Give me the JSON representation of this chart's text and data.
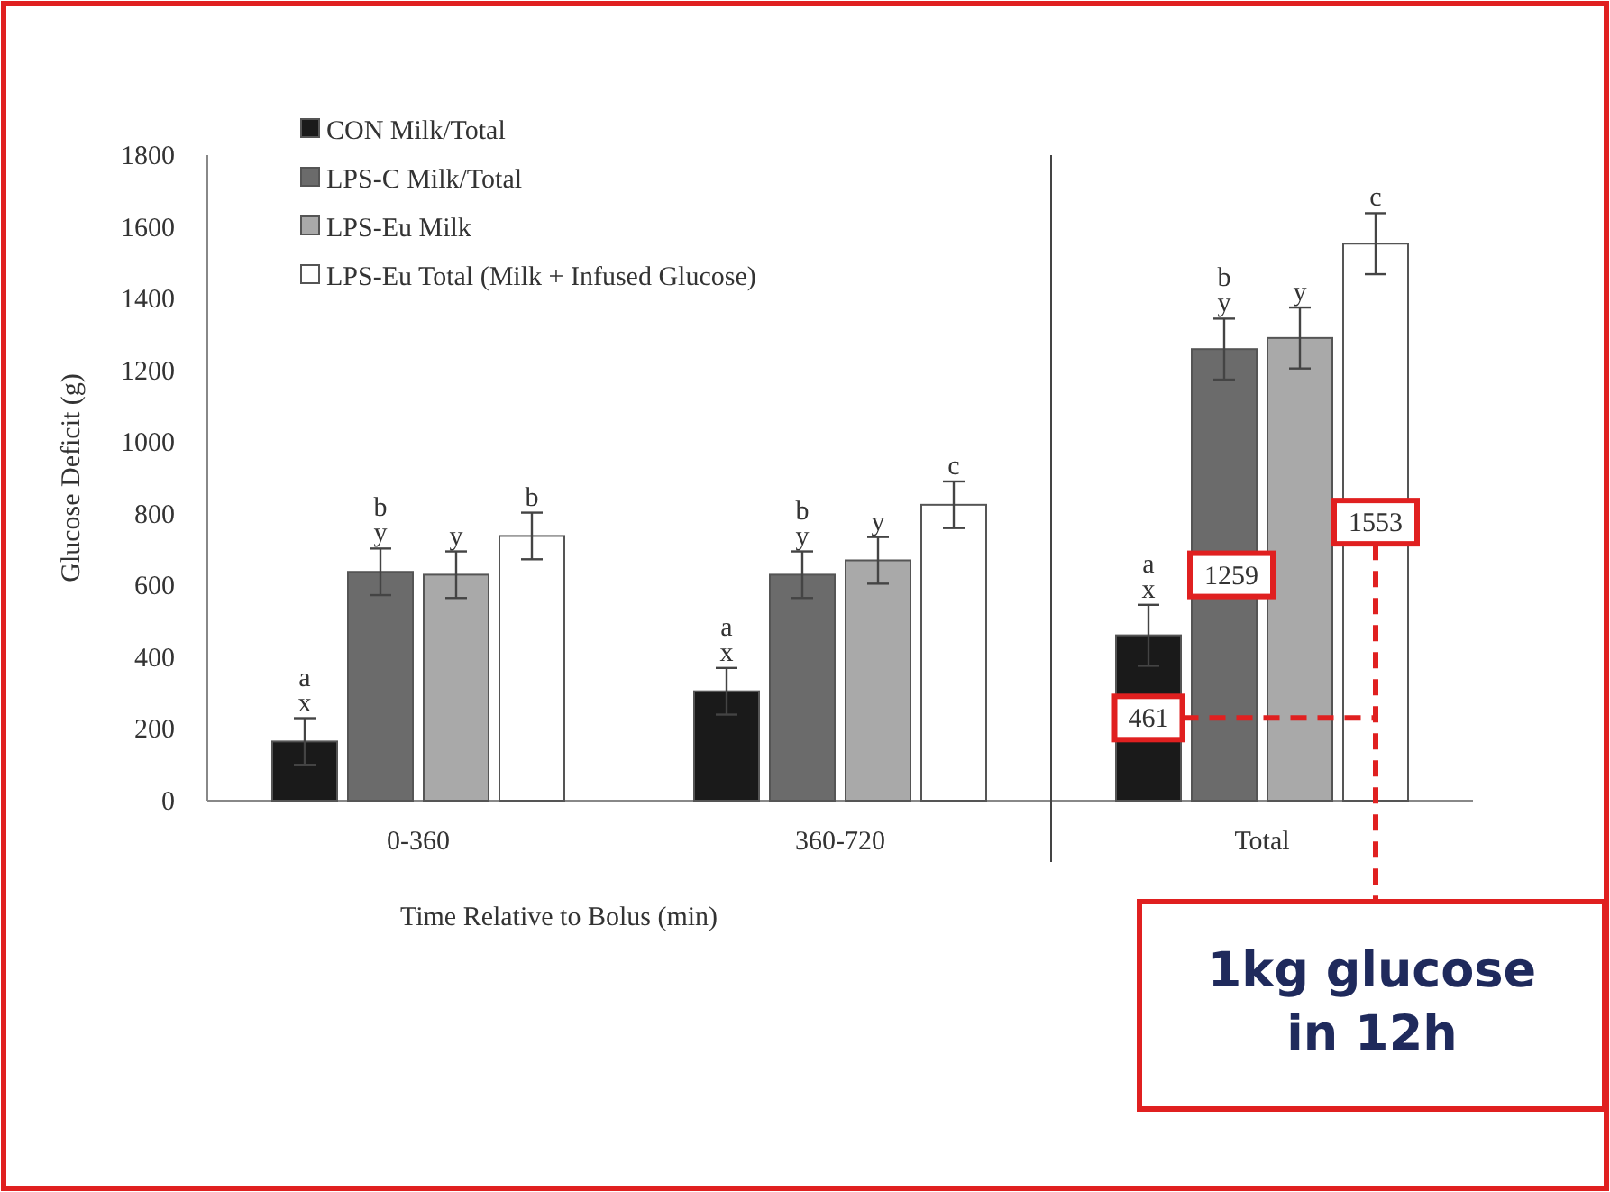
{
  "chart_data": {
    "type": "bar",
    "xlabel": "Time Relative to Bolus (min)",
    "ylabel": "Glucose Deficit (g)",
    "categories": [
      "0-360",
      "360-720",
      "Total"
    ],
    "ylim": [
      0,
      1800
    ],
    "yticks": [
      0,
      200,
      400,
      600,
      800,
      1000,
      1200,
      1400,
      1600,
      1800
    ],
    "legend": "top left",
    "series": [
      {
        "name": "CON Milk/Total",
        "color": "#1a1a1a",
        "values": [
          165,
          305,
          461
        ],
        "errors": [
          65,
          65,
          85
        ],
        "value_labels": [
          "a\nx",
          "a\nx",
          "a\nx"
        ]
      },
      {
        "name": "LPS-C Milk/Total",
        "color": "#6b6b6b",
        "values": [
          638,
          630,
          1259
        ],
        "errors": [
          65,
          65,
          85
        ],
        "value_labels": [
          "b\ny",
          "b\ny",
          "b\ny"
        ]
      },
      {
        "name": "LPS-Eu Milk",
        "color": "#a9a9a9",
        "values": [
          630,
          670,
          1290
        ],
        "errors": [
          65,
          65,
          85
        ],
        "value_labels": [
          "y",
          "y",
          "y"
        ]
      },
      {
        "name": "LPS-Eu Total (Milk + Infused Glucose)",
        "color": "#ffffff",
        "values": [
          738,
          825,
          1553
        ],
        "errors": [
          65,
          65,
          85
        ],
        "value_labels": [
          "b",
          "c",
          "c"
        ]
      }
    ],
    "annotations": [
      "461",
      "1259",
      "1553",
      "1kg glucose in 12h"
    ]
  }
}
